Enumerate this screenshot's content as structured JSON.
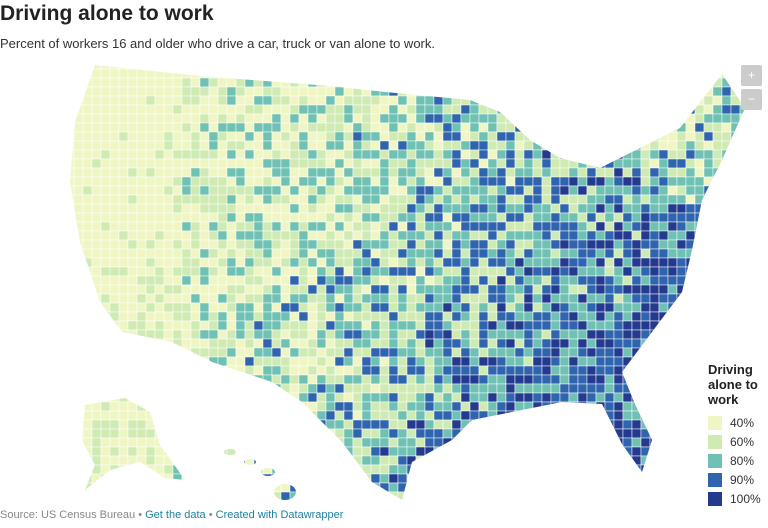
{
  "header": {
    "title": "Driving alone to work",
    "subtitle": "Percent of workers 16 and older who drive a car, truck or van alone to work."
  },
  "zoom_controls": [
    "+",
    "−"
  ],
  "legend": {
    "title": "Driving alone to work",
    "items": [
      {
        "label": "40%",
        "color": "#eff6c3"
      },
      {
        "label": "60%",
        "color": "#cfeab3"
      },
      {
        "label": "80%",
        "color": "#6ec1b3"
      },
      {
        "label": "90%",
        "color": "#2f64ae"
      },
      {
        "label": "100%",
        "color": "#233a8f"
      }
    ]
  },
  "footer": {
    "source": "Source: US Census Bureau",
    "separator": "•",
    "links": [
      "Get the data",
      "Created with Datawrapper"
    ]
  }
}
